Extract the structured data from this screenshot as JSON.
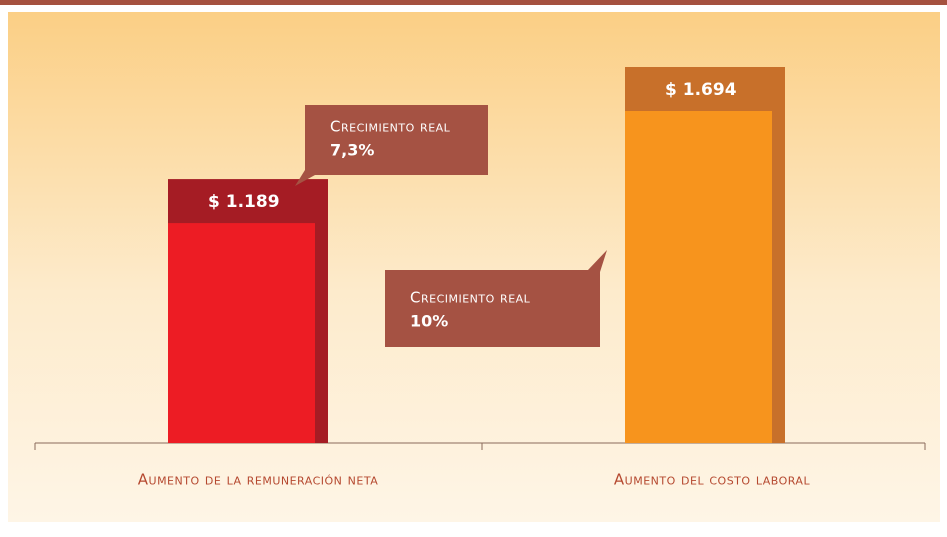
{
  "chart_data": {
    "type": "bar",
    "categories": [
      "Aumento de la remuneración neta",
      "Aumento del costo laboral"
    ],
    "values": [
      1189,
      1694
    ],
    "value_labels": [
      "$ 1.189",
      "$ 1.694"
    ],
    "colors": [
      "#ed1c24",
      "#f7941d"
    ],
    "shade_colors": [
      "#a51c24",
      "#c8702a"
    ],
    "annotations": [
      {
        "label": "Crecimiento real",
        "value": "7,3%"
      },
      {
        "label": "Crecimiento real",
        "value": "10%"
      }
    ]
  }
}
